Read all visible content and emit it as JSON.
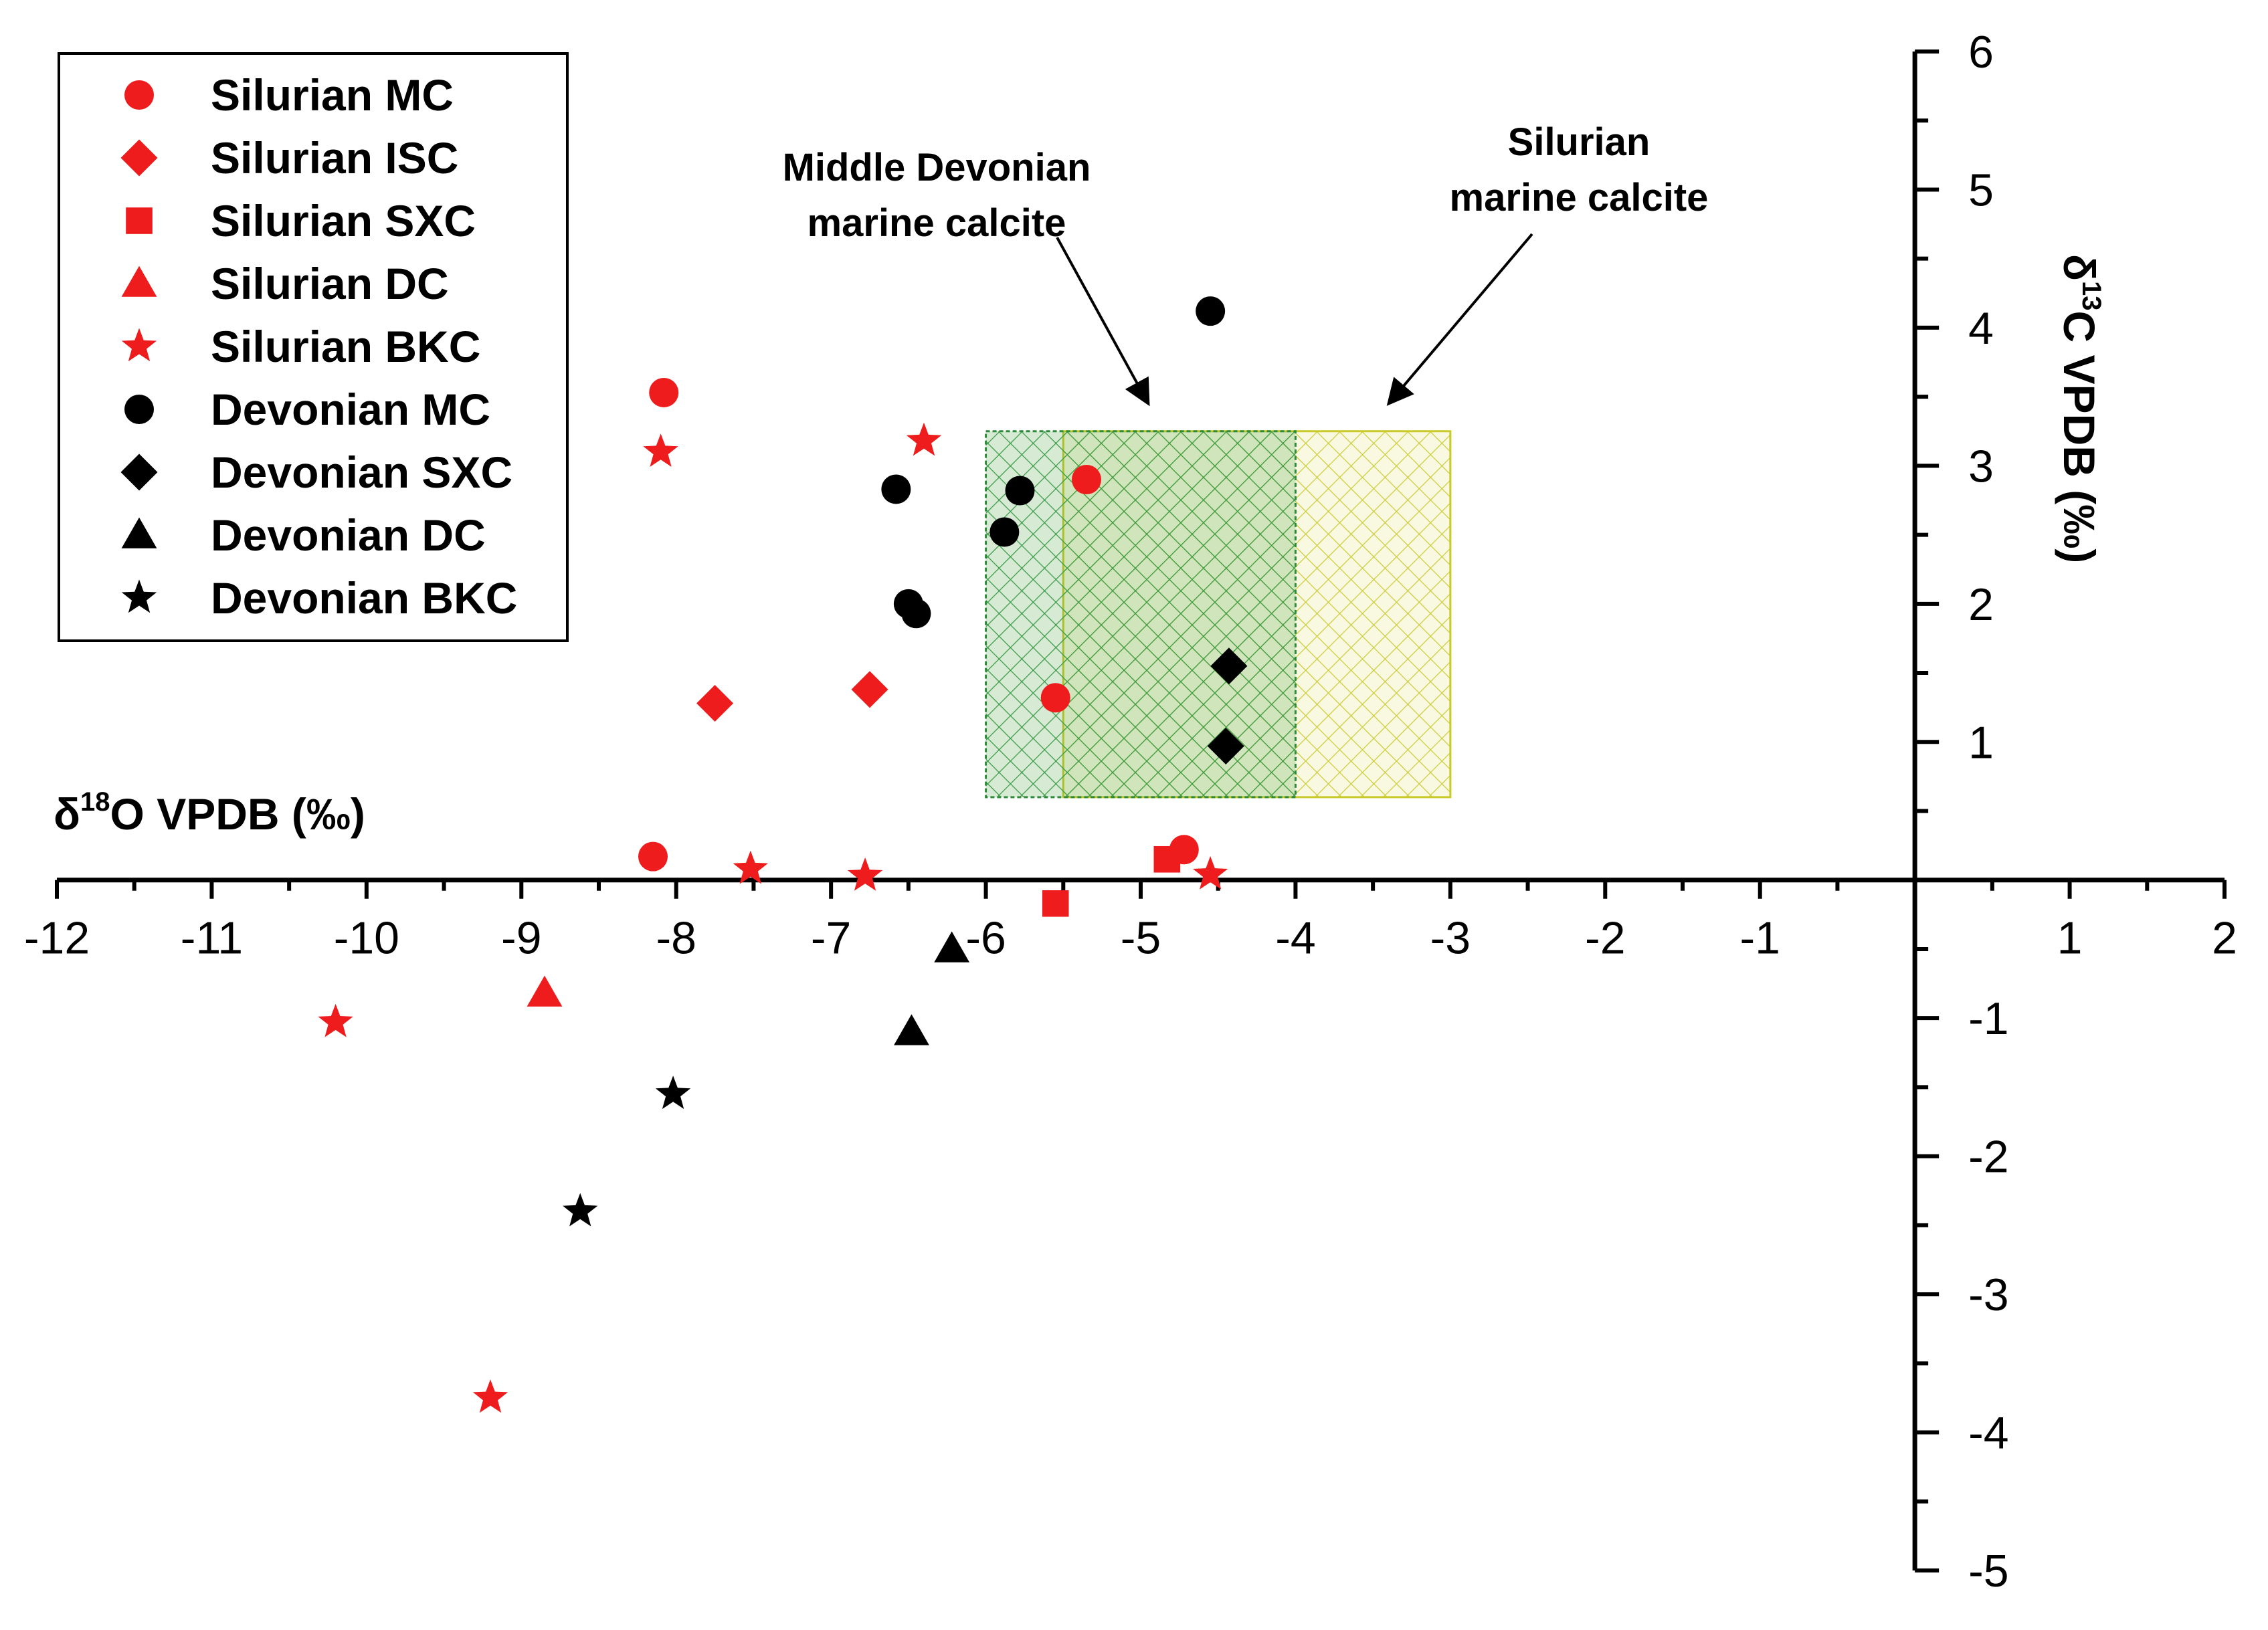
{
  "chart_data": {
    "type": "scatter",
    "xlabel": {
      "prefix": "δ",
      "sup": "18",
      "rest": "O VPDB (‰)"
    },
    "ylabel": {
      "prefix": "δ",
      "sup": "13",
      "rest": "C VPDB (‰)"
    },
    "xlim": [
      -12,
      2
    ],
    "ylim": [
      -5,
      6
    ],
    "x_ticks": [
      -12,
      -11,
      -10,
      -9,
      -8,
      -7,
      -6,
      -5,
      -4,
      -3,
      -2,
      -1,
      1,
      2
    ],
    "y_ticks": [
      6,
      5,
      4,
      3,
      2,
      1,
      -1,
      -2,
      -3,
      -4,
      -5
    ],
    "grid": false,
    "legend_position": "top-left",
    "regions": [
      {
        "name": "Middle Devonian marine calcite",
        "x_range": [
          -6,
          -4
        ],
        "y_range": [
          0.6,
          3.25
        ],
        "color": "#2e8b3a"
      },
      {
        "name": "Silurian marine calcite",
        "x_range": [
          -5.5,
          -3
        ],
        "y_range": [
          0.6,
          3.25
        ],
        "color": "#c9c92a"
      }
    ],
    "annotations": [
      {
        "lines": [
          "Middle Devonian",
          "marine calcite"
        ],
        "target": [
          -4.95,
          3.4
        ]
      },
      {
        "lines": [
          "Silurian",
          "marine calcite"
        ],
        "target": [
          -3.4,
          3.4
        ]
      }
    ],
    "series": [
      {
        "name": "Silurian MC",
        "marker": "circle",
        "color": "#ee1c1c",
        "points": [
          [
            -8.08,
            3.53
          ],
          [
            -8.15,
            0.17
          ],
          [
            -5.35,
            2.9
          ],
          [
            -5.55,
            1.32
          ],
          [
            -4.72,
            0.22
          ]
        ]
      },
      {
        "name": "Silurian ISC",
        "marker": "diamond",
        "color": "#ee1c1c",
        "points": [
          [
            -7.75,
            1.28
          ],
          [
            -6.75,
            1.38
          ]
        ]
      },
      {
        "name": "Silurian SXC",
        "marker": "square",
        "color": "#ee1c1c",
        "points": [
          [
            -5.55,
            -0.17
          ],
          [
            -4.83,
            0.15
          ]
        ]
      },
      {
        "name": "Silurian DC",
        "marker": "triangle",
        "color": "#ee1c1c",
        "points": [
          [
            -8.85,
            -0.82
          ]
        ]
      },
      {
        "name": "Silurian BKC",
        "marker": "star",
        "color": "#ee1c1c",
        "points": [
          [
            -8.1,
            3.1
          ],
          [
            -6.4,
            3.18
          ],
          [
            -7.52,
            0.08
          ],
          [
            -6.78,
            0.03
          ],
          [
            -4.55,
            0.04
          ],
          [
            -10.2,
            -1.03
          ],
          [
            -9.2,
            -3.75
          ]
        ]
      },
      {
        "name": "Devonian MC",
        "marker": "circle",
        "color": "#000000",
        "points": [
          [
            -4.55,
            4.12
          ],
          [
            -6.58,
            2.83
          ],
          [
            -5.78,
            2.82
          ],
          [
            -5.88,
            2.52
          ],
          [
            -6.5,
            2.0
          ],
          [
            -6.45,
            1.93
          ]
        ]
      },
      {
        "name": "Devonian SXC",
        "marker": "diamond",
        "color": "#000000",
        "points": [
          [
            -4.43,
            1.55
          ],
          [
            -4.45,
            0.97
          ]
        ]
      },
      {
        "name": "Devonian DC",
        "marker": "triangle",
        "color": "#000000",
        "points": [
          [
            -6.22,
            -0.5
          ],
          [
            -6.48,
            -1.1
          ]
        ]
      },
      {
        "name": "Devonian BKC",
        "marker": "star",
        "color": "#000000",
        "points": [
          [
            -8.02,
            -1.55
          ],
          [
            -8.62,
            -2.4
          ]
        ]
      }
    ]
  }
}
